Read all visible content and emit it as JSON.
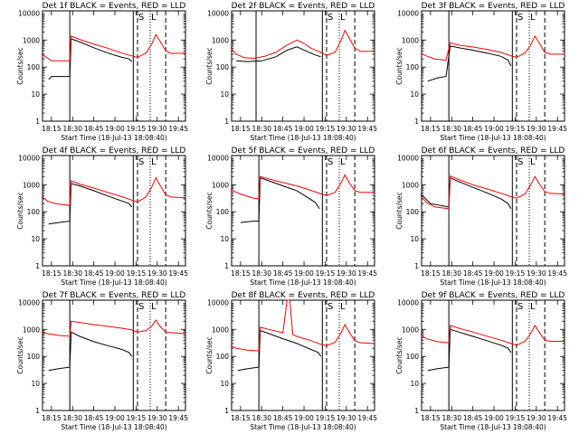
{
  "figure": {
    "ylabel": "Counts/sec",
    "xlabel": "Start Time (18-Jul-13 18:08:40)",
    "colors": {
      "events": "#000000",
      "lld": "#ff0000",
      "background": "#ffffff"
    },
    "yticks": [
      "1",
      "10",
      "100",
      "1000",
      "10000"
    ],
    "xticks": [
      "18:15",
      "18:30",
      "18:45",
      "19:00",
      "19:15",
      "19:30",
      "19:45"
    ]
  },
  "chart_data": [
    {
      "type": "line",
      "title": "Det 1f BLACK = Events, RED = LLD",
      "markers": [
        "S",
        "L"
      ],
      "xlabel": "Start Time (18-Jul-13 18:08:40)",
      "ylabel": "Counts/sec",
      "yscale": "log",
      "ylim": [
        1,
        12000
      ],
      "xlim": [
        "18:08:40",
        "19:50"
      ],
      "xticks": [
        "18:15",
        "18:30",
        "18:45",
        "19:00",
        "19:15",
        "19:30",
        "19:45"
      ],
      "vlines": {
        "solid": [
          "18:28",
          "19:13"
        ],
        "dashed": [
          "19:16",
          "19:36"
        ],
        "dotted": [
          "19:25"
        ]
      },
      "series": [
        {
          "name": "Events",
          "color": "#000000",
          "x": [
            "18:13",
            "18:15",
            "18:28",
            "18:29",
            "18:35",
            "18:45",
            "18:55",
            "19:05",
            "19:10",
            "19:12"
          ],
          "y": [
            35,
            45,
            45,
            1100,
            850,
            520,
            330,
            230,
            200,
            160
          ]
        },
        {
          "name": "LLD",
          "color": "#ff0000",
          "x": [
            "18:08",
            "18:12",
            "18:15",
            "18:28",
            "18:29",
            "18:35",
            "18:45",
            "18:55",
            "19:05",
            "19:12",
            "19:16",
            "19:22",
            "19:26",
            "19:29",
            "19:32",
            "19:36",
            "19:40",
            "19:50"
          ],
          "y": [
            300,
            220,
            170,
            170,
            1400,
            1050,
            700,
            500,
            330,
            260,
            230,
            330,
            700,
            1600,
            900,
            400,
            320,
            330
          ]
        }
      ]
    },
    {
      "type": "line",
      "title": "Det 2f BLACK = Events, RED = LLD",
      "markers": [
        "S",
        "L"
      ],
      "xlabel": "Start Time (18-Jul-13 18:08:40)",
      "ylabel": "Counts/sec",
      "yscale": "log",
      "ylim": [
        1,
        12000
      ],
      "xlim": [
        "18:08:40",
        "19:50"
      ],
      "xticks": [
        "18:15",
        "18:30",
        "18:45",
        "19:00",
        "19:15",
        "19:30",
        "19:45"
      ],
      "vlines": {
        "solid": [
          "18:26",
          "19:13"
        ],
        "dashed": [
          "19:16",
          "19:36"
        ],
        "dotted": [
          "19:25"
        ]
      },
      "series": [
        {
          "name": "Events",
          "color": "#000000",
          "x": [
            "18:12",
            "18:20",
            "18:30",
            "18:40",
            "18:48",
            "18:55",
            "19:02",
            "19:08",
            "19:12"
          ],
          "y": [
            170,
            160,
            170,
            240,
            420,
            560,
            380,
            280,
            240
          ]
        },
        {
          "name": "LLD",
          "color": "#ff0000",
          "x": [
            "18:08",
            "18:12",
            "18:18",
            "18:25",
            "18:32",
            "18:40",
            "18:48",
            "18:55",
            "19:00",
            "19:05",
            "19:12",
            "19:16",
            "19:22",
            "19:26",
            "19:29",
            "19:32",
            "19:36",
            "19:40",
            "19:50"
          ],
          "y": [
            520,
            300,
            220,
            210,
            250,
            350,
            650,
            1000,
            750,
            500,
            350,
            270,
            350,
            900,
            2300,
            1200,
            500,
            380,
            380
          ]
        }
      ]
    },
    {
      "type": "line",
      "title": "Det 3f BLACK = Events, RED = LLD",
      "markers": [
        "S",
        "L"
      ],
      "xlabel": "Start Time (18-Jul-13 18:08:40)",
      "ylabel": "Counts/sec",
      "yscale": "log",
      "ylim": [
        1,
        12000
      ],
      "xlim": [
        "18:08:40",
        "19:50"
      ],
      "xticks": [
        "18:15",
        "18:30",
        "18:45",
        "19:00",
        "19:15",
        "19:30",
        "19:45"
      ],
      "vlines": {
        "solid": [
          "18:28",
          "19:13"
        ],
        "dashed": [
          "19:16",
          "19:36"
        ],
        "dotted": [
          "19:25"
        ]
      },
      "series": [
        {
          "name": "Events",
          "color": "#000000",
          "x": [
            "18:13",
            "18:20",
            "18:26",
            "18:29",
            "18:35",
            "18:45",
            "18:55",
            "19:05",
            "19:10",
            "19:12"
          ],
          "y": [
            30,
            40,
            45,
            600,
            520,
            420,
            330,
            250,
            180,
            110
          ]
        },
        {
          "name": "LLD",
          "color": "#ff0000",
          "x": [
            "18:08",
            "18:12",
            "18:18",
            "18:26",
            "18:29",
            "18:35",
            "18:45",
            "18:55",
            "19:05",
            "19:12",
            "19:16",
            "19:22",
            "19:26",
            "19:29",
            "19:32",
            "19:36",
            "19:40",
            "19:50"
          ],
          "y": [
            320,
            260,
            200,
            180,
            800,
            650,
            550,
            450,
            350,
            260,
            230,
            330,
            650,
            1400,
            800,
            350,
            300,
            300
          ]
        }
      ]
    },
    {
      "type": "line",
      "title": "Det 4f BLACK = Events, RED = LLD",
      "markers": [
        "S",
        "L"
      ],
      "xlabel": "Start Time (18-Jul-13 18:08:40)",
      "ylabel": "Counts/sec",
      "yscale": "log",
      "ylim": [
        1,
        12000
      ],
      "xlim": [
        "18:08:40",
        "19:50"
      ],
      "xticks": [
        "18:15",
        "18:30",
        "18:45",
        "19:00",
        "19:15",
        "19:30",
        "19:45"
      ],
      "vlines": {
        "solid": [
          "18:28",
          "19:13"
        ],
        "dashed": [
          "19:16",
          "19:36"
        ],
        "dotted": [
          "19:25"
        ]
      },
      "series": [
        {
          "name": "Events",
          "color": "#000000",
          "x": [
            "18:13",
            "18:20",
            "18:28",
            "18:29",
            "18:35",
            "18:45",
            "18:55",
            "19:05",
            "19:10",
            "19:12"
          ],
          "y": [
            35,
            40,
            45,
            1100,
            900,
            600,
            380,
            250,
            200,
            150
          ]
        },
        {
          "name": "LLD",
          "color": "#ff0000",
          "x": [
            "18:08",
            "18:12",
            "18:18",
            "18:28",
            "18:29",
            "18:35",
            "18:45",
            "18:55",
            "19:05",
            "19:12",
            "19:16",
            "19:22",
            "19:26",
            "19:29",
            "19:32",
            "19:36",
            "19:40",
            "19:50"
          ],
          "y": [
            380,
            250,
            200,
            170,
            1400,
            1050,
            750,
            520,
            360,
            270,
            230,
            350,
            800,
            1800,
            950,
            420,
            350,
            330
          ]
        }
      ]
    },
    {
      "type": "line",
      "title": "Det 5f BLACK = Events, RED = LLD",
      "markers": [
        "S",
        "L"
      ],
      "xlabel": "Start Time (18-Jul-13 18:08:40)",
      "ylabel": "Counts/sec",
      "yscale": "log",
      "ylim": [
        1,
        12000
      ],
      "xlim": [
        "18:08:40",
        "19:50"
      ],
      "xticks": [
        "18:15",
        "18:30",
        "18:45",
        "19:00",
        "19:15",
        "19:30",
        "19:45"
      ],
      "vlines": {
        "solid": [
          "18:28",
          "19:13"
        ],
        "dashed": [
          "19:16",
          "19:36"
        ],
        "dotted": [
          "19:25"
        ]
      },
      "series": [
        {
          "name": "Events",
          "color": "#000000",
          "x": [
            "18:15",
            "18:24",
            "18:28",
            "18:29",
            "18:35",
            "18:45",
            "18:55",
            "19:02",
            "19:08",
            "19:11"
          ],
          "y": [
            40,
            45,
            45,
            1800,
            1400,
            900,
            600,
            350,
            220,
            130
          ]
        },
        {
          "name": "LLD",
          "color": "#ff0000",
          "x": [
            "18:08",
            "18:15",
            "18:24",
            "18:28",
            "18:29",
            "18:35",
            "18:45",
            "18:55",
            "19:05",
            "19:12",
            "19:16",
            "19:22",
            "19:26",
            "19:29",
            "19:32",
            "19:36",
            "19:40",
            "19:50"
          ],
          "y": [
            650,
            450,
            320,
            300,
            2000,
            1650,
            1200,
            900,
            620,
            460,
            400,
            520,
            1100,
            2300,
            1200,
            600,
            520,
            520
          ]
        }
      ]
    },
    {
      "type": "line",
      "title": "Det 6f BLACK = Events, RED = LLD",
      "markers": [
        "S",
        "L"
      ],
      "xlabel": "Start Time (18-Jul-13 18:08:40)",
      "ylabel": "Counts/sec",
      "yscale": "log",
      "ylim": [
        1,
        12000
      ],
      "xlim": [
        "18:08:40",
        "19:50"
      ],
      "xticks": [
        "18:15",
        "18:30",
        "18:45",
        "19:00",
        "19:15",
        "19:30",
        "19:45"
      ],
      "vlines": {
        "solid": [
          "18:28",
          "19:13"
        ],
        "dashed": [
          "19:16",
          "19:36"
        ],
        "dotted": [
          "19:25"
        ]
      },
      "series": [
        {
          "name": "Events",
          "color": "#000000",
          "x": [
            "18:08",
            "18:15",
            "18:28",
            "18:29",
            "18:35",
            "18:45",
            "18:55",
            "19:05",
            "19:10",
            "19:12"
          ],
          "y": [
            450,
            200,
            150,
            1800,
            1300,
            800,
            500,
            300,
            200,
            130
          ]
        },
        {
          "name": "LLD",
          "color": "#ff0000",
          "x": [
            "18:08",
            "18:12",
            "18:18",
            "18:28",
            "18:29",
            "18:35",
            "18:45",
            "18:55",
            "19:05",
            "19:12",
            "19:16",
            "19:22",
            "19:26",
            "19:29",
            "19:32",
            "19:36",
            "19:40",
            "19:50"
          ],
          "y": [
            380,
            220,
            150,
            130,
            2100,
            1550,
            1000,
            700,
            480,
            360,
            320,
            450,
            1000,
            2000,
            1100,
            550,
            480,
            450
          ]
        }
      ]
    },
    {
      "type": "line",
      "title": "Det 7f BLACK = Events, RED = LLD",
      "markers": [
        "S",
        "L"
      ],
      "xlabel": "Start Time (18-Jul-13 18:08:40)",
      "ylabel": "Counts/sec",
      "yscale": "log",
      "ylim": [
        1,
        12000
      ],
      "xlim": [
        "18:08:40",
        "19:50"
      ],
      "xticks": [
        "18:15",
        "18:30",
        "18:45",
        "19:00",
        "19:15",
        "19:30",
        "19:45"
      ],
      "vlines": {
        "solid": [
          "18:28",
          "19:13"
        ],
        "dashed": [
          "19:16",
          "19:36"
        ],
        "dotted": [
          "19:25"
        ]
      },
      "series": [
        {
          "name": "Events",
          "color": "#000000",
          "x": [
            "18:13",
            "18:20",
            "18:28",
            "18:29",
            "18:35",
            "18:45",
            "18:55",
            "19:05",
            "19:10",
            "19:12"
          ],
          "y": [
            30,
            35,
            40,
            800,
            550,
            350,
            250,
            180,
            140,
            100
          ]
        },
        {
          "name": "LLD",
          "color": "#ff0000",
          "x": [
            "18:08",
            "18:12",
            "18:20",
            "18:28",
            "18:29",
            "18:35",
            "18:45",
            "18:55",
            "19:05",
            "19:12",
            "19:16",
            "19:22",
            "19:26",
            "19:29",
            "19:32",
            "19:36",
            "19:40",
            "19:50"
          ],
          "y": [
            800,
            700,
            600,
            550,
            2000,
            1800,
            1500,
            1300,
            1100,
            950,
            800,
            900,
            1300,
            2200,
            1300,
            800,
            750,
            700
          ]
        }
      ]
    },
    {
      "type": "line",
      "title": "Det 8f BLACK = Events, RED = LLD",
      "markers": [
        "S",
        "L"
      ],
      "xlabel": "Start Time (18-Jul-13 18:08:40)",
      "ylabel": "Counts/sec",
      "yscale": "log",
      "ylim": [
        1,
        12000
      ],
      "xlim": [
        "18:08:40",
        "19:50"
      ],
      "xticks": [
        "18:15",
        "18:30",
        "18:45",
        "19:00",
        "19:15",
        "19:30",
        "19:45"
      ],
      "vlines": {
        "solid": [
          "18:28",
          "19:13"
        ],
        "dashed": [
          "19:16",
          "19:36"
        ],
        "dotted": [
          "19:25"
        ]
      },
      "series": [
        {
          "name": "Events",
          "color": "#000000",
          "x": [
            "18:13",
            "18:20",
            "18:28",
            "18:29",
            "18:35",
            "18:45",
            "18:55",
            "19:05",
            "19:10",
            "19:12"
          ],
          "y": [
            30,
            35,
            40,
            900,
            700,
            450,
            300,
            180,
            140,
            100
          ]
        },
        {
          "name": "LLD",
          "color": "#ff0000",
          "x": [
            "18:08",
            "18:12",
            "18:20",
            "18:28",
            "18:29",
            "18:35",
            "18:45",
            "18:48",
            "18:50",
            "18:52",
            "18:55",
            "19:05",
            "19:12",
            "19:16",
            "19:22",
            "19:26",
            "19:29",
            "19:32",
            "19:36",
            "19:40",
            "19:50"
          ],
          "y": [
            250,
            200,
            170,
            160,
            1200,
            1000,
            750,
            12000,
            12000,
            650,
            550,
            380,
            280,
            250,
            330,
            700,
            1500,
            800,
            380,
            320,
            300
          ]
        }
      ]
    },
    {
      "type": "line",
      "title": "Det 9f BLACK = Events, RED = LLD",
      "markers": [
        "S",
        "L"
      ],
      "xlabel": "Start Time (18-Jul-13 18:08:40)",
      "ylabel": "Counts/sec",
      "yscale": "log",
      "ylim": [
        1,
        12000
      ],
      "xlim": [
        "18:08:40",
        "19:50"
      ],
      "xticks": [
        "18:15",
        "18:30",
        "18:45",
        "19:00",
        "19:15",
        "19:30",
        "19:45"
      ],
      "vlines": {
        "solid": [
          "18:28",
          "19:13"
        ],
        "dashed": [
          "19:16",
          "19:36"
        ],
        "dotted": [
          "19:25"
        ]
      },
      "series": [
        {
          "name": "Events",
          "color": "#000000",
          "x": [
            "18:13",
            "18:20",
            "18:28",
            "18:29",
            "18:35",
            "18:45",
            "18:55",
            "19:05",
            "19:10",
            "19:12"
          ],
          "y": [
            30,
            35,
            40,
            1000,
            800,
            550,
            380,
            260,
            200,
            140
          ]
        },
        {
          "name": "LLD",
          "color": "#ff0000",
          "x": [
            "18:08",
            "18:12",
            "18:20",
            "18:28",
            "18:29",
            "18:35",
            "18:45",
            "18:55",
            "19:05",
            "19:12",
            "19:16",
            "19:22",
            "19:26",
            "19:29",
            "19:32",
            "19:36",
            "19:40",
            "19:50"
          ],
          "y": [
            650,
            450,
            350,
            320,
            1400,
            1100,
            800,
            560,
            400,
            300,
            260,
            360,
            700,
            1400,
            800,
            400,
            360,
            360
          ]
        }
      ]
    }
  ]
}
